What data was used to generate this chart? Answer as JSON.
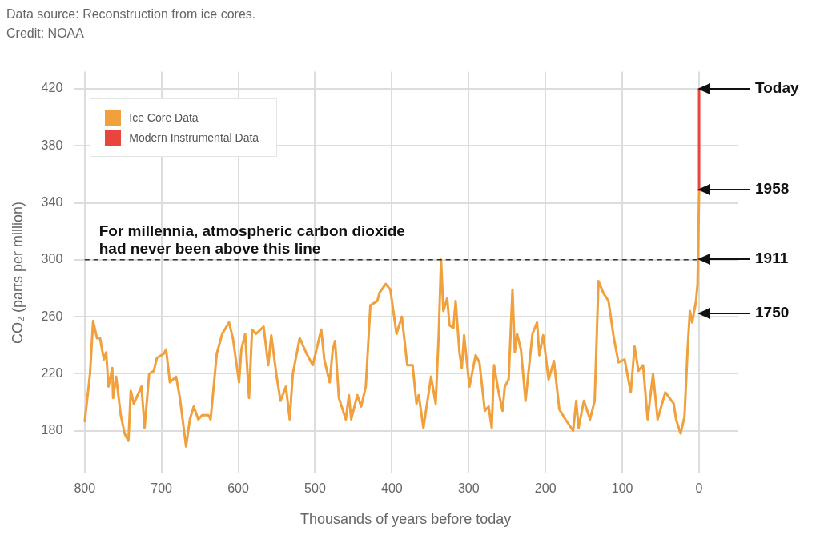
{
  "chart_data": {
    "type": "line",
    "annotations": [
      "Data source: Reconstruction from ice cores.",
      "Credit: NOAA",
      "Today",
      "1958",
      "1911",
      "1750"
    ],
    "xlabel": "Thousands of years before today",
    "ylabel": "CO₂ (parts per million)",
    "xlim": [
      814,
      -50
    ],
    "xticks": [
      800,
      700,
      600,
      500,
      400,
      300,
      200,
      100,
      0
    ],
    "ylim": [
      150,
      432
    ],
    "yticks": [
      180,
      220,
      260,
      300,
      340,
      380,
      420
    ],
    "grid": true,
    "legend": "top left",
    "ref_lines": [
      {
        "axis": "y",
        "value": 300,
        "label": "For millennia, atmospheric carbon dioxide\nhad never been above this line",
        "color": "#333333",
        "line_style": "dashed"
      }
    ],
    "series": [
      {
        "name": "Ice Core Data",
        "color": "#f0a03c",
        "x": [
          800,
          793,
          789,
          784,
          780,
          775,
          772,
          769,
          764,
          763,
          759,
          753,
          748,
          743,
          740,
          736,
          726,
          722,
          716,
          710,
          706,
          697,
          694,
          689,
          681,
          676,
          668,
          663,
          658,
          652,
          647,
          639,
          636,
          628,
          621,
          612,
          607,
          599,
          596,
          591,
          586,
          582,
          577,
          567,
          561,
          557,
          550,
          545,
          538,
          533,
          529,
          520,
          511,
          503,
          492,
          488,
          481,
          477,
          474,
          469,
          460,
          456,
          453,
          445,
          440,
          434,
          428,
          419,
          416,
          408,
          402,
          394,
          387,
          380,
          373,
          368,
          365,
          359,
          352,
          349,
          343,
          339,
          336,
          333,
          328,
          325,
          320,
          317,
          312,
          309,
          306,
          299,
          291,
          286,
          279,
          274,
          270,
          267,
          261,
          256,
          253,
          248,
          243,
          240,
          237,
          232,
          226,
          217,
          211,
          208,
          203,
          196,
          189,
          182,
          174,
          164,
          160,
          157,
          150,
          142,
          136,
          131,
          125,
          118,
          111,
          105,
          97,
          89,
          84,
          79,
          73,
          67,
          60,
          54,
          44,
          33,
          30,
          24,
          19,
          15,
          12,
          9,
          4,
          2,
          0
        ],
        "values": [
          186,
          220,
          257,
          245,
          245,
          230,
          235,
          211,
          224,
          203,
          218,
          191,
          178,
          173,
          208,
          199,
          211,
          182,
          220,
          222,
          231,
          234,
          237,
          214,
          218,
          203,
          169,
          188,
          197,
          188,
          191,
          191,
          188,
          234,
          248,
          256,
          245,
          214,
          237,
          248,
          203,
          251,
          248,
          253,
          226,
          247,
          218,
          201,
          211,
          188,
          220,
          245,
          234,
          226,
          251,
          230,
          214,
          237,
          243,
          203,
          188,
          205,
          188,
          205,
          197,
          211,
          268,
          271,
          277,
          283,
          279,
          248,
          260,
          226,
          226,
          199,
          205,
          182,
          207,
          218,
          199,
          248,
          300,
          264,
          273,
          254,
          252,
          271,
          235,
          224,
          247,
          211,
          233,
          228,
          194,
          197,
          182,
          226,
          207,
          194,
          211,
          216,
          279,
          235,
          248,
          237,
          201,
          248,
          256,
          233,
          247,
          216,
          229,
          195,
          188,
          180,
          201,
          182,
          201,
          188,
          201,
          285,
          277,
          271,
          245,
          228,
          230,
          207,
          239,
          222,
          226,
          188,
          220,
          188,
          207,
          199,
          188,
          178,
          190,
          237,
          264,
          256,
          271,
          283,
          348
        ]
      },
      {
        "name": "Modern Instrumental Data",
        "color": "#e8453c",
        "x": [
          0,
          0
        ],
        "values": [
          348,
          420
        ]
      }
    ]
  }
}
